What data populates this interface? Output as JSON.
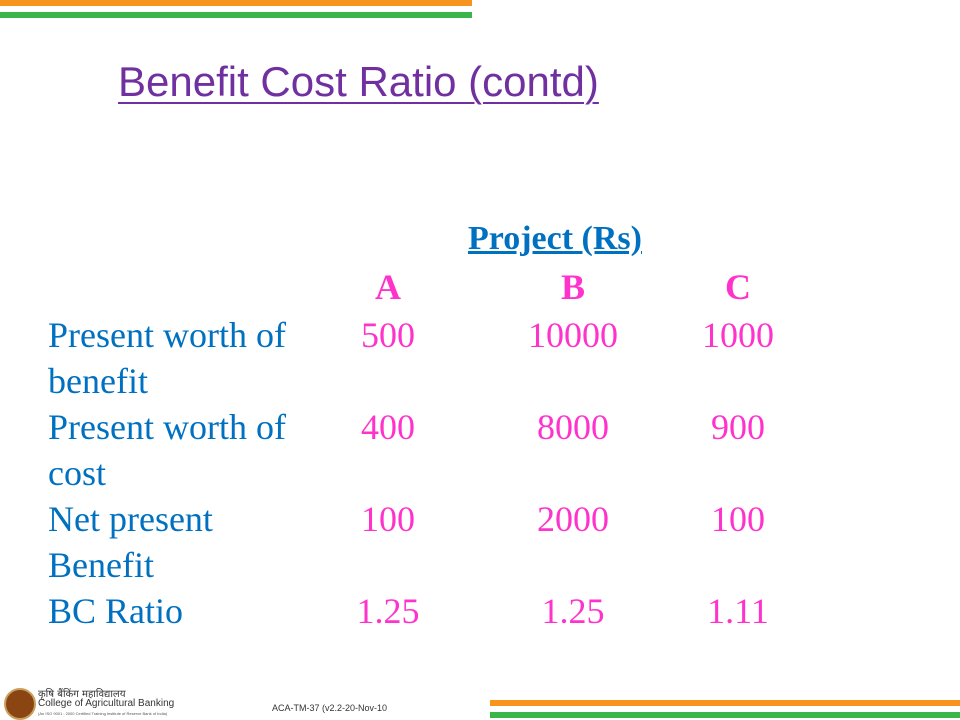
{
  "slide": {
    "title": "Benefit Cost Ratio (contd)",
    "table": {
      "caption": "Project (Rs)",
      "columns": [
        "A",
        "B",
        "C"
      ],
      "rows": [
        {
          "label": "Present worth of benefit",
          "values": [
            500,
            10000,
            1000
          ]
        },
        {
          "label": "Present worth of cost",
          "values": [
            400,
            8000,
            900
          ]
        },
        {
          "label": "Net present Benefit",
          "values": [
            100,
            2000,
            100
          ]
        },
        {
          "label": "BC Ratio",
          "values": [
            1.25,
            1.25,
            1.11
          ]
        }
      ]
    },
    "footer": {
      "logo_hindi": "कृषि बैंकिंग महाविद्यालय",
      "logo_name": "College of Agricultural Banking",
      "logo_note": "(An ISO 9001 : 2000 Certified Training Institute of Reserve Bank of India)",
      "code": "ACA-TM-37 (v2.2-20-Nov-10"
    }
  }
}
